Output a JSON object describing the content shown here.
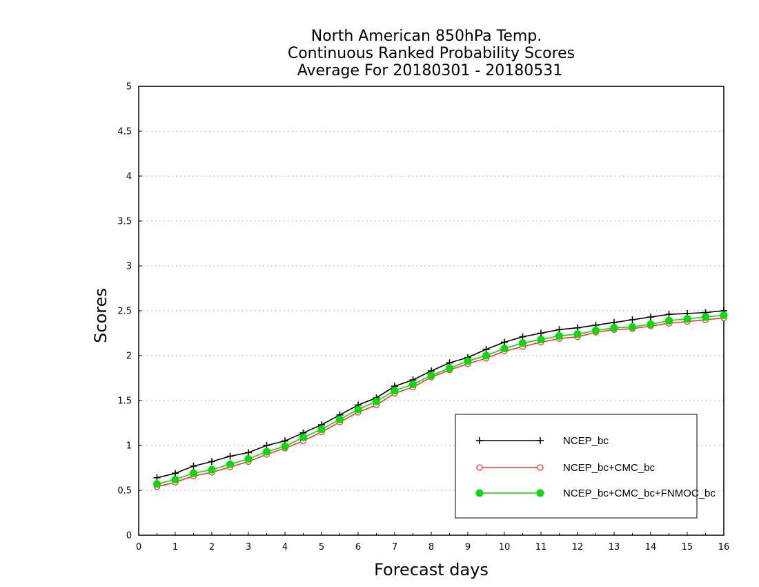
{
  "chart_data": {
    "type": "line",
    "title": [
      "North American 850hPa Temp.",
      "Continuous Ranked Probability Scores",
      "Average For 20180301 - 20180531"
    ],
    "xlabel": "Forecast days",
    "ylabel": "Scores",
    "xlim": [
      0,
      16
    ],
    "ylim": [
      0,
      5
    ],
    "x_ticks": [
      0,
      1,
      2,
      3,
      4,
      5,
      6,
      7,
      8,
      9,
      10,
      11,
      12,
      13,
      14,
      15,
      16
    ],
    "y_ticks": [
      0,
      0.5,
      1,
      1.5,
      2,
      2.5,
      3,
      3.5,
      4,
      4.5,
      5
    ],
    "y_tick_labels": [
      "0",
      "0.5",
      "1",
      "1.5",
      "2",
      "2.5",
      "3",
      "3.5",
      "4",
      "4.5",
      "5"
    ],
    "grid": true,
    "legend_position": "bottom-right",
    "x": [
      0.5,
      1,
      1.5,
      2,
      2.5,
      3,
      3.5,
      4,
      4.5,
      5,
      5.5,
      6,
      6.5,
      7,
      7.5,
      8,
      8.5,
      9,
      9.5,
      10,
      10.5,
      11,
      11.5,
      12,
      12.5,
      13,
      13.5,
      14,
      14.5,
      15,
      15.5,
      16
    ],
    "series": [
      {
        "name": "NCEP_bc",
        "color": "#000000",
        "marker": "plus",
        "values": [
          0.64,
          0.69,
          0.77,
          0.82,
          0.88,
          0.92,
          1.0,
          1.05,
          1.14,
          1.23,
          1.34,
          1.45,
          1.53,
          1.66,
          1.73,
          1.83,
          1.92,
          1.98,
          2.07,
          2.15,
          2.21,
          2.25,
          2.29,
          2.31,
          2.34,
          2.37,
          2.4,
          2.43,
          2.46,
          2.47,
          2.48,
          2.5
        ]
      },
      {
        "name": "NCEP_bc+CMC_bc",
        "color": "#ff3030",
        "marker": "open-circle",
        "values": [
          0.54,
          0.59,
          0.66,
          0.7,
          0.76,
          0.82,
          0.9,
          0.97,
          1.05,
          1.15,
          1.26,
          1.37,
          1.45,
          1.58,
          1.65,
          1.76,
          1.84,
          1.91,
          1.97,
          2.05,
          2.1,
          2.15,
          2.19,
          2.21,
          2.26,
          2.29,
          2.3,
          2.33,
          2.36,
          2.38,
          2.4,
          2.42
        ]
      },
      {
        "name": "NCEP_bc+CMC_bc+FNMOC_bc",
        "color": "#00dd00",
        "marker": "filled-circle",
        "values": [
          0.57,
          0.62,
          0.69,
          0.73,
          0.79,
          0.85,
          0.93,
          0.99,
          1.09,
          1.18,
          1.29,
          1.4,
          1.49,
          1.61,
          1.68,
          1.78,
          1.86,
          1.94,
          2.0,
          2.08,
          2.14,
          2.18,
          2.22,
          2.24,
          2.28,
          2.31,
          2.32,
          2.35,
          2.39,
          2.41,
          2.43,
          2.45
        ]
      }
    ]
  }
}
